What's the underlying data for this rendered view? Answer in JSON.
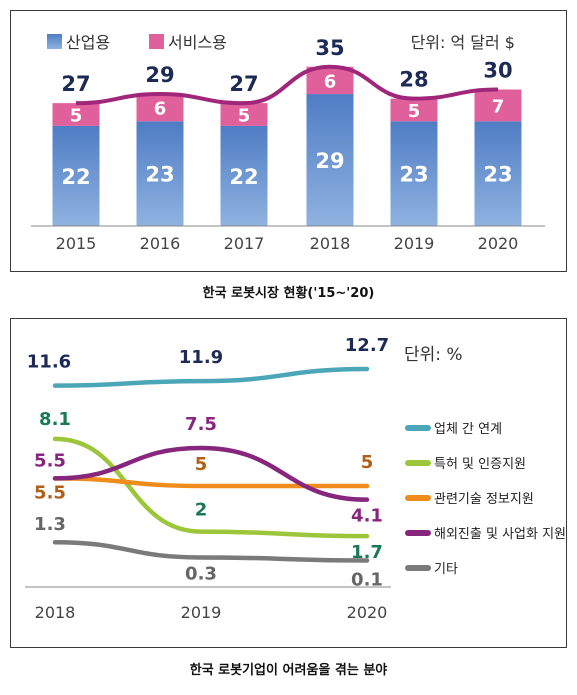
{
  "chart_data": [
    {
      "type": "bar",
      "unit_label": "단위: 억 달러 $",
      "caption": "한국 로봇시장 현황('15~'20)",
      "categories": [
        "2015",
        "2016",
        "2017",
        "2018",
        "2019",
        "2020"
      ],
      "series": [
        {
          "name": "산업용",
          "values": [
            22,
            23,
            22,
            29,
            23,
            23
          ],
          "color": "#5b87c9"
        },
        {
          "name": "서비스용",
          "values": [
            5,
            6,
            5,
            6,
            5,
            7
          ],
          "color": "#e0609b"
        }
      ],
      "totals": [
        27,
        29,
        27,
        35,
        28,
        30
      ],
      "total_line_color": "#a0267a",
      "stacked": true
    },
    {
      "type": "line",
      "unit_label": "단위: %",
      "caption": "한국 로봇기업이 어려움을 겪는 분야",
      "x": [
        "2018",
        "2019",
        "2020"
      ],
      "series": [
        {
          "name": "업체 간 연계",
          "values": [
            11.6,
            11.9,
            12.7
          ],
          "labels": [
            "11.6",
            "11.9",
            "12.7"
          ],
          "color": "#4ba6b8",
          "label_color": "#1c2a55"
        },
        {
          "name": "특허 및 인증지원",
          "values": [
            8.1,
            2,
            1.7
          ],
          "labels": [
            "8.1",
            "2",
            "1.7"
          ],
          "color": "#9cc63a",
          "label_color": "#1a7a55"
        },
        {
          "name": "관련기술 정보지원",
          "values": [
            5.5,
            5,
            5
          ],
          "labels": [
            "5.5",
            "5",
            "5"
          ],
          "color": "#ef8c1b",
          "label_color": "#b05e18"
        },
        {
          "name": "해외진출 및 사업화 지원",
          "values": [
            5.5,
            7.5,
            4.1
          ],
          "labels": [
            "5.5",
            "7.5",
            "4.1"
          ],
          "color": "#87267d",
          "label_color": "#87267d"
        },
        {
          "name": "기타",
          "values": [
            1.3,
            0.3,
            0.1
          ],
          "labels": [
            "1.3",
            "0.3",
            "0.1"
          ],
          "color": "#7a7a7a",
          "label_color": "#666666"
        }
      ]
    }
  ]
}
